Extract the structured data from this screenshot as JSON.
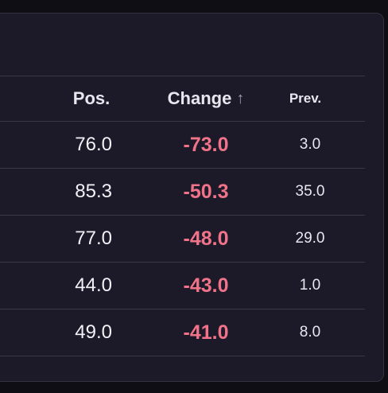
{
  "table": {
    "headers": {
      "pos": "Pos.",
      "change": "Change",
      "change_sort_icon": "↑",
      "prev": "Prev."
    },
    "rows": [
      {
        "pos": "76.0",
        "change": "-73.0",
        "prev": "3.0"
      },
      {
        "pos": "85.3",
        "change": "-50.3",
        "prev": "35.0"
      },
      {
        "pos": "77.0",
        "change": "-48.0",
        "prev": "29.0"
      },
      {
        "pos": "44.0",
        "change": "-43.0",
        "prev": "1.0"
      },
      {
        "pos": "49.0",
        "change": "-41.0",
        "prev": "8.0"
      }
    ]
  },
  "colors": {
    "background": "#0f0e14",
    "panel": "#1c1a29",
    "negative": "#f07389",
    "text": "#f2f1f6",
    "divider": "#3a3847"
  },
  "icons": {
    "sort": "arrow-up-icon"
  }
}
